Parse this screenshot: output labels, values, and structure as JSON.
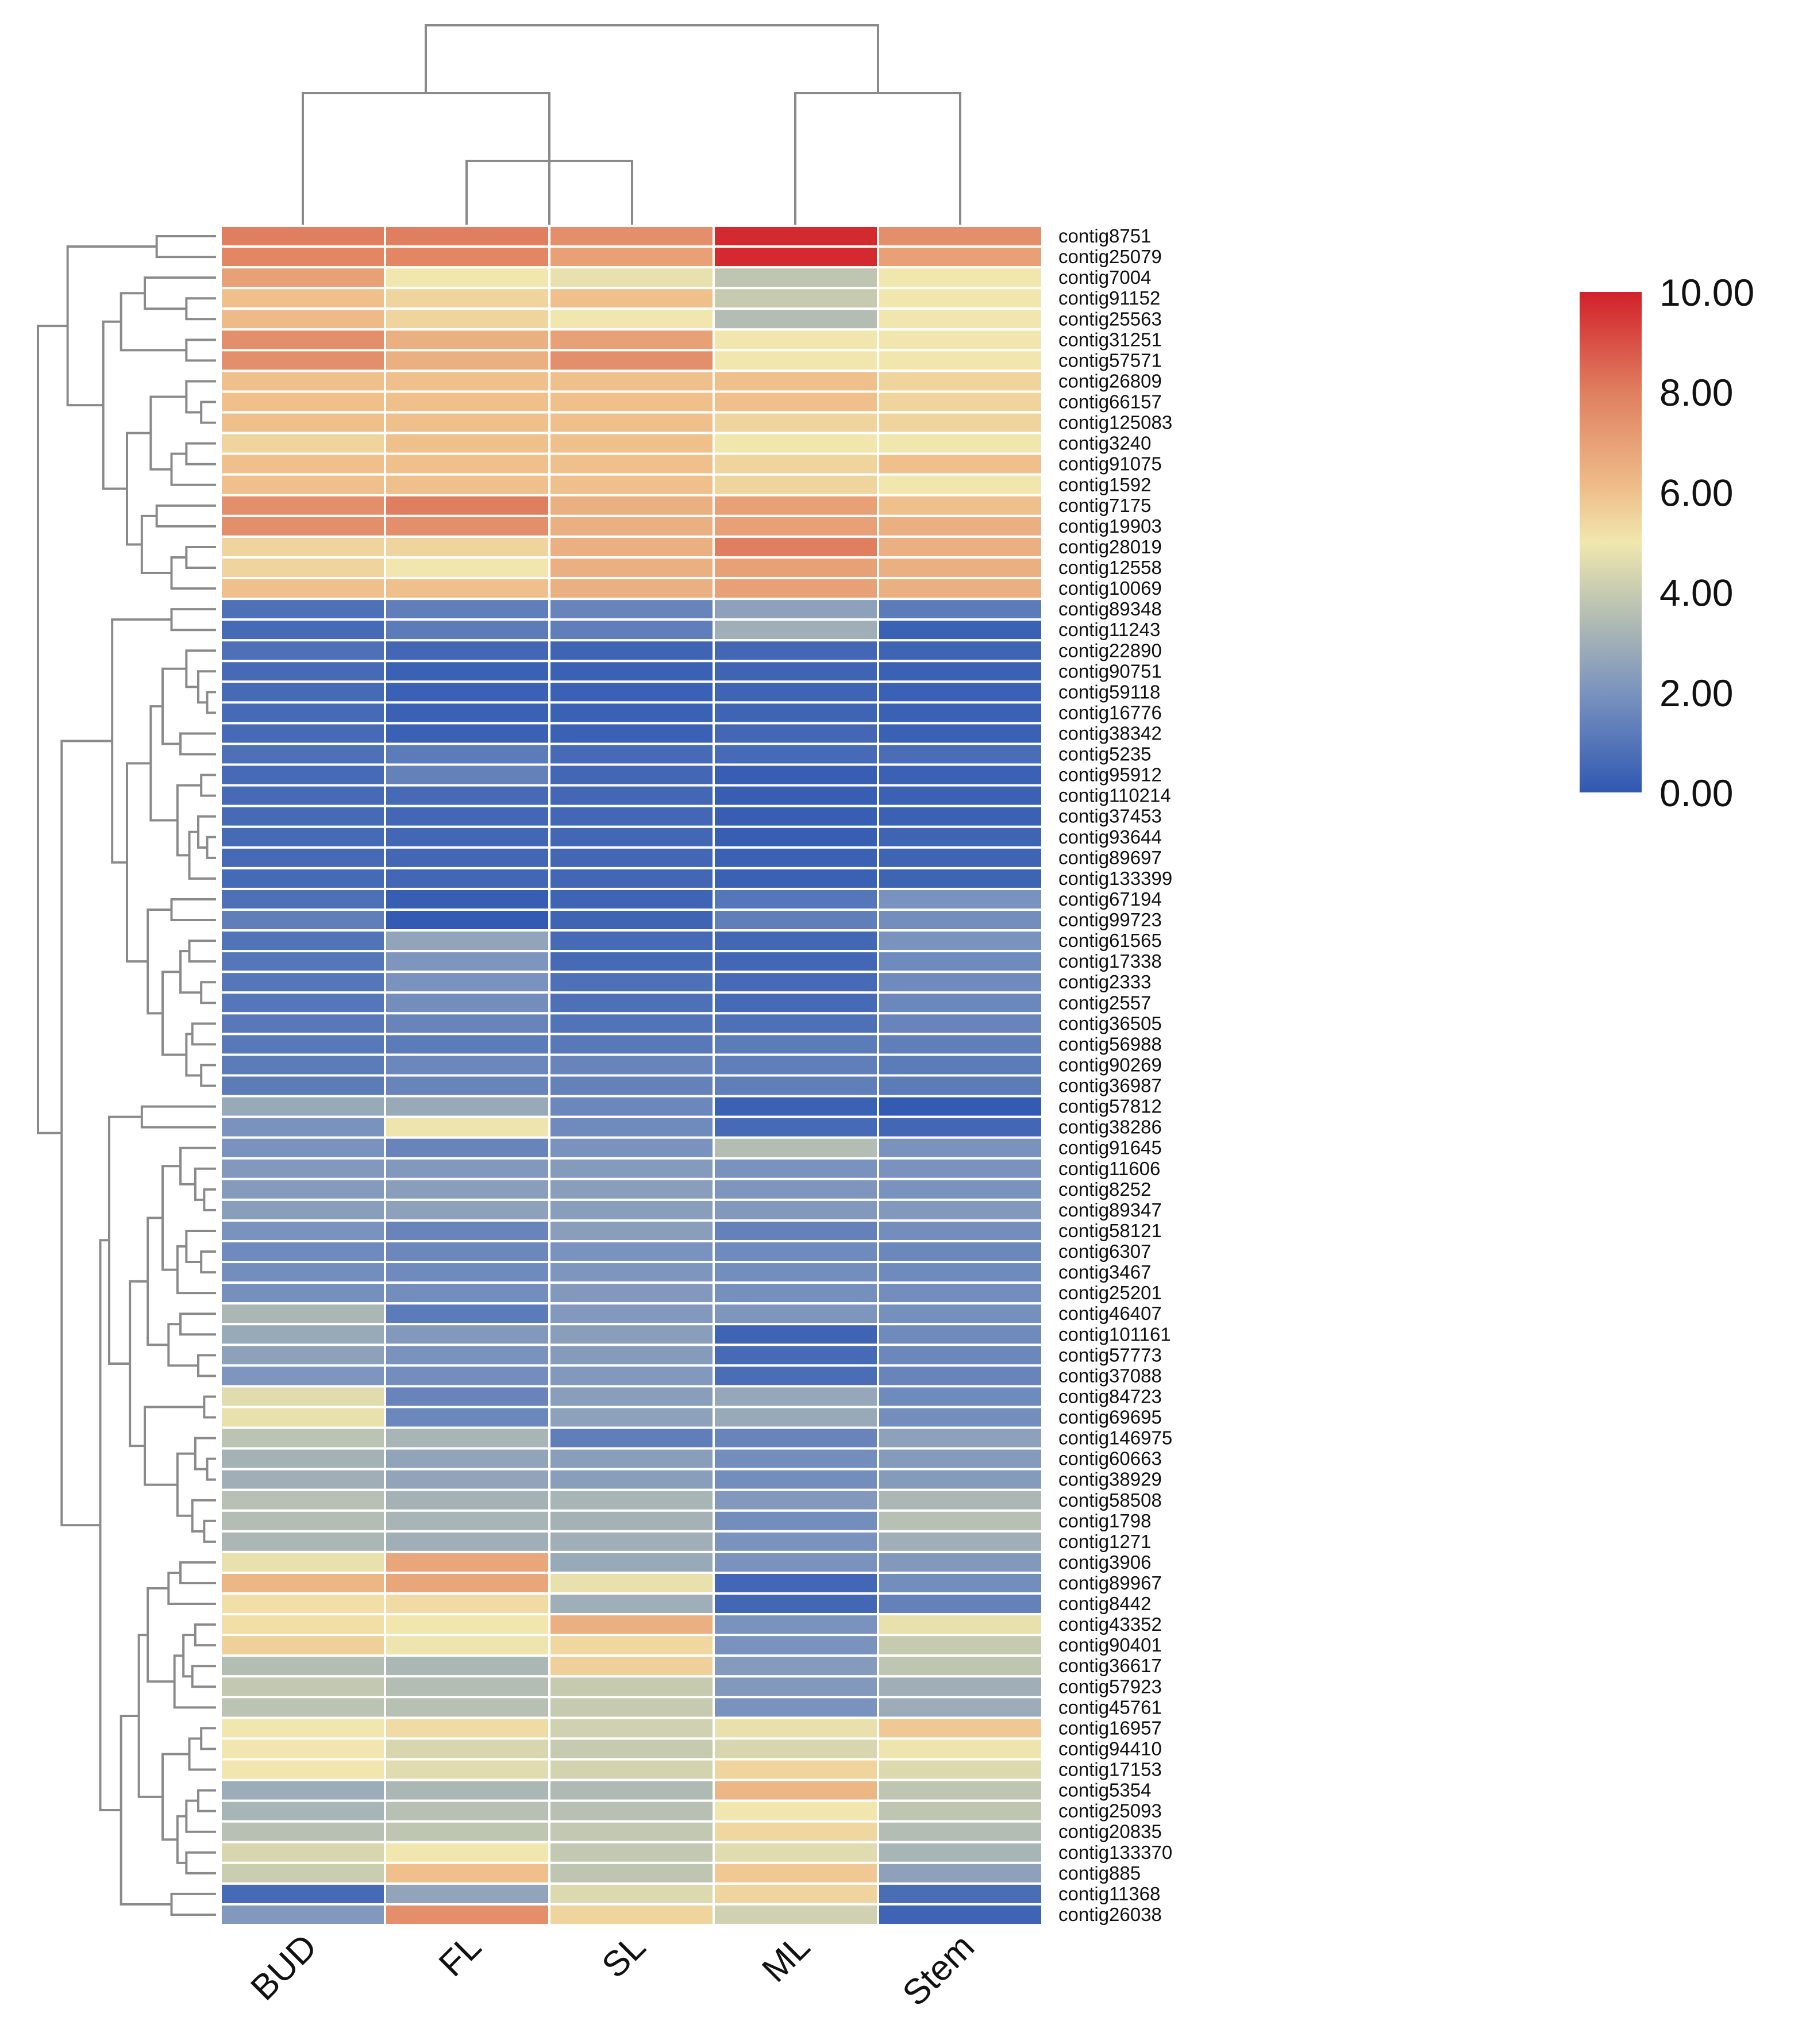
{
  "chart_data": {
    "type": "heatmap",
    "title": "",
    "columns": [
      "BUD",
      "FL",
      "SL",
      "ML",
      "Stem"
    ],
    "rows": [
      "contig8751",
      "contig25079",
      "contig7004",
      "contig91152",
      "contig25563",
      "contig31251",
      "contig57571",
      "contig26809",
      "contig66157",
      "contig125083",
      "contig3240",
      "contig91075",
      "contig1592",
      "contig7175",
      "contig19903",
      "contig28019",
      "contig12558",
      "contig10069",
      "contig89348",
      "contig11243",
      "contig22890",
      "contig90751",
      "contig59118",
      "contig16776",
      "contig38342",
      "contig5235",
      "contig95912",
      "contig110214",
      "contig37453",
      "contig93644",
      "contig89697",
      "contig133399",
      "contig67194",
      "contig99723",
      "contig61565",
      "contig17338",
      "contig2333",
      "contig2557",
      "contig36505",
      "contig56988",
      "contig90269",
      "contig36987",
      "contig57812",
      "contig38286",
      "contig91645",
      "contig11606",
      "contig8252",
      "contig89347",
      "contig58121",
      "contig6307",
      "contig3467",
      "contig25201",
      "contig46407",
      "contig101161",
      "contig57773",
      "contig37088",
      "contig84723",
      "contig69695",
      "contig146975",
      "contig60663",
      "contig38929",
      "contig58508",
      "contig1798",
      "contig1271",
      "contig3906",
      "contig89967",
      "contig8442",
      "contig43352",
      "contig90401",
      "contig36617",
      "contig57923",
      "contig45761",
      "contig16957",
      "contig94410",
      "contig17153",
      "contig5354",
      "contig25093",
      "contig20835",
      "contig133370",
      "contig885",
      "contig11368",
      "contig26038"
    ],
    "values": [
      [
        8.0,
        8.0,
        7.5,
        9.8,
        7.5
      ],
      [
        7.8,
        7.8,
        7.0,
        9.8,
        7.0
      ],
      [
        7.0,
        5.0,
        4.8,
        3.8,
        5.0
      ],
      [
        6.0,
        5.5,
        6.0,
        4.0,
        5.0
      ],
      [
        6.2,
        5.5,
        5.0,
        3.5,
        5.0
      ],
      [
        7.5,
        6.5,
        7.0,
        5.0,
        5.0
      ],
      [
        7.5,
        6.5,
        7.5,
        5.0,
        5.0
      ],
      [
        6.0,
        6.0,
        6.0,
        6.0,
        5.5
      ],
      [
        6.0,
        6.0,
        6.0,
        6.0,
        5.5
      ],
      [
        6.0,
        6.0,
        6.0,
        5.5,
        5.5
      ],
      [
        5.5,
        6.0,
        6.0,
        5.0,
        5.0
      ],
      [
        6.0,
        6.0,
        6.0,
        5.5,
        6.0
      ],
      [
        6.0,
        6.0,
        6.0,
        5.5,
        5.0
      ],
      [
        7.5,
        8.0,
        6.5,
        7.0,
        6.0
      ],
      [
        7.5,
        7.5,
        6.5,
        7.0,
        6.5
      ],
      [
        5.5,
        5.5,
        6.5,
        8.0,
        6.5
      ],
      [
        5.5,
        5.0,
        6.5,
        7.0,
        6.5
      ],
      [
        6.0,
        6.0,
        6.5,
        7.0,
        6.5
      ],
      [
        0.8,
        1.3,
        1.5,
        2.5,
        1.2
      ],
      [
        0.6,
        1.2,
        1.3,
        3.0,
        0.3
      ],
      [
        0.8,
        0.5,
        0.4,
        0.5,
        0.4
      ],
      [
        0.6,
        0.3,
        0.3,
        0.4,
        0.3
      ],
      [
        0.6,
        0.3,
        0.3,
        0.4,
        0.3
      ],
      [
        0.6,
        0.3,
        0.3,
        0.4,
        0.3
      ],
      [
        0.6,
        0.3,
        0.3,
        0.5,
        0.3
      ],
      [
        0.8,
        1.2,
        0.6,
        0.6,
        0.7
      ],
      [
        0.6,
        1.4,
        0.5,
        0.2,
        0.3
      ],
      [
        0.6,
        0.6,
        0.5,
        0.2,
        0.3
      ],
      [
        0.6,
        0.5,
        0.5,
        0.2,
        0.3
      ],
      [
        0.6,
        0.5,
        0.5,
        0.2,
        0.4
      ],
      [
        0.6,
        0.5,
        0.5,
        0.3,
        0.4
      ],
      [
        0.6,
        0.5,
        0.5,
        0.3,
        0.4
      ],
      [
        0.8,
        0.2,
        0.4,
        1.0,
        2.0
      ],
      [
        1.3,
        0.1,
        0.4,
        1.3,
        1.8
      ],
      [
        0.9,
        2.6,
        0.6,
        0.5,
        2.0
      ],
      [
        1.0,
        2.1,
        0.6,
        0.5,
        1.7
      ],
      [
        1.0,
        2.0,
        0.8,
        0.6,
        1.7
      ],
      [
        1.0,
        1.8,
        0.8,
        0.6,
        1.6
      ],
      [
        1.1,
        1.5,
        0.9,
        0.8,
        1.5
      ],
      [
        1.1,
        1.2,
        1.1,
        1.2,
        1.3
      ],
      [
        1.2,
        1.6,
        1.5,
        1.3,
        1.2
      ],
      [
        1.2,
        1.5,
        1.4,
        1.3,
        1.2
      ],
      [
        2.8,
        2.8,
        1.6,
        0.3,
        0.1
      ],
      [
        2.0,
        4.9,
        1.7,
        0.6,
        0.5
      ],
      [
        2.0,
        1.5,
        2.0,
        3.5,
        2.0
      ],
      [
        2.2,
        2.2,
        2.3,
        2.0,
        2.0
      ],
      [
        2.3,
        2.4,
        2.4,
        2.1,
        2.0
      ],
      [
        2.4,
        2.5,
        2.4,
        2.2,
        2.2
      ],
      [
        2.0,
        1.5,
        2.4,
        1.4,
        1.8
      ],
      [
        1.7,
        1.6,
        2.0,
        1.7,
        1.6
      ],
      [
        1.8,
        1.7,
        2.1,
        1.8,
        1.7
      ],
      [
        1.9,
        1.8,
        2.2,
        1.9,
        1.8
      ],
      [
        3.3,
        1.2,
        2.2,
        2.1,
        1.9
      ],
      [
        2.8,
        2.2,
        2.4,
        0.4,
        1.7
      ],
      [
        2.5,
        2.0,
        2.3,
        0.6,
        1.6
      ],
      [
        2.1,
        1.8,
        2.2,
        0.7,
        1.5
      ],
      [
        4.6,
        1.5,
        2.4,
        2.7,
        1.7
      ],
      [
        4.8,
        1.6,
        2.5,
        2.8,
        1.8
      ],
      [
        3.7,
        3.2,
        1.3,
        1.5,
        2.5
      ],
      [
        3.1,
        2.6,
        2.4,
        1.8,
        2.3
      ],
      [
        3.0,
        2.6,
        2.4,
        1.8,
        2.3
      ],
      [
        3.6,
        3.1,
        3.2,
        2.2,
        3.3
      ],
      [
        3.5,
        3.2,
        3.1,
        1.8,
        3.6
      ],
      [
        3.3,
        3.0,
        3.0,
        2.0,
        3.0
      ],
      [
        4.8,
        6.8,
        2.8,
        2.0,
        2.2
      ],
      [
        6.3,
        6.8,
        4.8,
        0.5,
        1.8
      ],
      [
        5.2,
        5.3,
        3.0,
        0.5,
        1.4
      ],
      [
        5.2,
        5.0,
        6.5,
        2.0,
        4.8
      ],
      [
        5.6,
        4.9,
        5.4,
        2.0,
        4.0
      ],
      [
        3.5,
        3.3,
        5.6,
        2.3,
        3.8
      ],
      [
        3.9,
        3.5,
        4.0,
        2.2,
        3.0
      ],
      [
        3.7,
        3.6,
        4.0,
        2.0,
        2.9
      ],
      [
        5.0,
        5.3,
        4.2,
        4.8,
        5.8
      ],
      [
        5.0,
        4.4,
        4.0,
        4.4,
        4.9
      ],
      [
        5.0,
        4.6,
        4.3,
        5.5,
        4.5
      ],
      [
        2.9,
        3.3,
        3.4,
        6.3,
        3.8
      ],
      [
        3.2,
        3.6,
        3.6,
        5.0,
        3.8
      ],
      [
        3.6,
        3.8,
        3.9,
        5.4,
        3.5
      ],
      [
        4.4,
        5.0,
        3.9,
        4.6,
        3.2
      ],
      [
        4.1,
        6.0,
        3.8,
        5.8,
        2.5
      ],
      [
        0.6,
        2.6,
        4.5,
        5.5,
        0.7
      ],
      [
        2.2,
        7.5,
        5.5,
        4.2,
        0.4
      ]
    ],
    "color_scale": {
      "min": 0,
      "max": 10,
      "ticks": [
        "10.00",
        "8.00",
        "6.00",
        "4.00",
        "2.00",
        "0.00"
      ],
      "stops": [
        {
          "value": 0,
          "color": "#3058b2"
        },
        {
          "value": 2,
          "color": "#7a93be"
        },
        {
          "value": 4,
          "color": "#c6cbb0"
        },
        {
          "value": 5,
          "color": "#f1e7ae"
        },
        {
          "value": 6,
          "color": "#efc08c"
        },
        {
          "value": 8,
          "color": "#e07f60"
        },
        {
          "value": 10,
          "color": "#d2202a"
        }
      ]
    }
  }
}
